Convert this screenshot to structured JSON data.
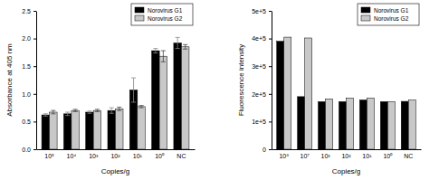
{
  "chart_data": [
    {
      "type": "bar",
      "x_label": "Copies/g",
      "y_label": "Absorbance at 405 nm",
      "categories": [
        "10⁵",
        "10⁴",
        "10³",
        "10²",
        "10¹",
        "10⁰",
        "NC"
      ],
      "series": [
        {
          "name": "Norovirus G1",
          "color": "#000000",
          "values": [
            0.62,
            0.64,
            0.67,
            0.7,
            1.07,
            1.78,
            1.92
          ],
          "errors": [
            0.02,
            0.03,
            0.02,
            0.05,
            0.22,
            0.04,
            0.1
          ]
        },
        {
          "name": "Norovirus G2",
          "color": "#c8c8c8",
          "values": [
            0.67,
            0.7,
            0.7,
            0.73,
            0.77,
            1.68,
            1.85
          ],
          "errors": [
            0.03,
            0.02,
            0.02,
            0.03,
            0.02,
            0.1,
            0.04
          ]
        }
      ],
      "ylim": [
        0,
        2.5
      ],
      "yticks": [
        {
          "value": 0,
          "label": "0.0"
        },
        0.5,
        {
          "value": 1,
          "label": "1.0"
        },
        1.5,
        {
          "value": 2,
          "label": "2.0"
        },
        2.5
      ],
      "legend": "upper right"
    },
    {
      "type": "bar",
      "x_label": "Copies/g",
      "y_label": "Fluorescence intensity",
      "categories": [
        "10⁸",
        "10⁷",
        "10³",
        "10²",
        "10¹",
        "10⁰",
        "NC"
      ],
      "series": [
        {
          "name": "Norovirus G1",
          "color": "#000000",
          "values": [
            390000,
            190000,
            172000,
            172000,
            178000,
            172000,
            173000
          ]
        },
        {
          "name": "Norovirus G2",
          "color": "#c8c8c8",
          "values": [
            405000,
            402000,
            182000,
            185000,
            185000,
            172000,
            178000
          ]
        }
      ],
      "ylim": [
        0,
        500000
      ],
      "yticks": [
        0,
        {
          "value": 100000,
          "label": "1e+5"
        },
        {
          "value": 200000,
          "label": "2e+5"
        },
        {
          "value": 300000,
          "label": "3e+5"
        },
        {
          "value": 400000,
          "label": "4e+5"
        },
        {
          "value": 500000,
          "label": "5e+5"
        }
      ],
      "legend": "upper right"
    }
  ]
}
